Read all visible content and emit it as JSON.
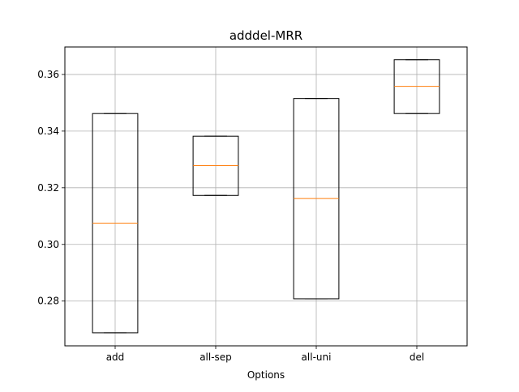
{
  "chart_data": {
    "type": "box",
    "title": "adddel-MRR",
    "xlabel": "Options",
    "ylabel": "",
    "categories": [
      "add",
      "all-sep",
      "all-uni",
      "del"
    ],
    "boxes": [
      {
        "category": "add",
        "min": 0.2688,
        "q1": 0.2688,
        "median": 0.3075,
        "q3": 0.3462,
        "max": 0.3462
      },
      {
        "category": "all-sep",
        "min": 0.3173,
        "q1": 0.3173,
        "median": 0.3278,
        "q3": 0.3382,
        "max": 0.3382
      },
      {
        "category": "all-uni",
        "min": 0.2808,
        "q1": 0.2808,
        "median": 0.3162,
        "q3": 0.3515,
        "max": 0.3515
      },
      {
        "category": "del",
        "min": 0.3462,
        "q1": 0.3462,
        "median": 0.3558,
        "q3": 0.3652,
        "max": 0.3652
      }
    ],
    "yticks": [
      "0.28",
      "0.30",
      "0.32",
      "0.34",
      "0.36"
    ],
    "ylim": [
      0.2642,
      0.3697
    ],
    "grid": true,
    "colors": {
      "box": "#000000",
      "median": "#ff7f0e",
      "grid": "#b0b0b0"
    }
  }
}
